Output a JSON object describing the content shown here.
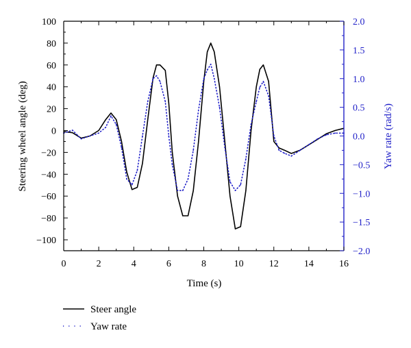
{
  "chart_data": {
    "type": "line",
    "xlabel": "Time (s)",
    "ylabel_left": "Steering wheel angle (deg)",
    "ylabel_right": "Yaw rate (rad/s)",
    "xlim": [
      0,
      16
    ],
    "ylim_left": [
      -110,
      100
    ],
    "ylim_right": [
      -2.0,
      2.0
    ],
    "x_ticks": [
      "0",
      "2",
      "4",
      "6",
      "8",
      "10",
      "12",
      "14",
      "16"
    ],
    "y_left_ticks": [
      "100",
      "80",
      "60",
      "40",
      "20",
      "0",
      "−20",
      "−40",
      "−60",
      "−80",
      "−100"
    ],
    "y_right_ticks": [
      "2.0",
      "1.5",
      "1.0",
      "0.5",
      "0.0",
      "−0.5",
      "−1.0",
      "−1.5",
      "−2.0"
    ],
    "grid": false,
    "legend_position": "below",
    "colors": {
      "steer": "#000000",
      "yaw": "#1f1fc8",
      "right_axis": "#1f1fc8"
    },
    "series": [
      {
        "name": "Steer angle",
        "axis": "left",
        "style": "solid",
        "x": [
          0,
          0.5,
          1.0,
          1.5,
          2.0,
          2.4,
          2.7,
          3.0,
          3.3,
          3.6,
          3.9,
          4.2,
          4.5,
          4.8,
          5.1,
          5.3,
          5.5,
          5.8,
          6.0,
          6.2,
          6.5,
          6.8,
          7.1,
          7.4,
          7.7,
          8.0,
          8.2,
          8.4,
          8.6,
          8.9,
          9.2,
          9.5,
          9.8,
          10.1,
          10.4,
          10.7,
          11.0,
          11.2,
          11.4,
          11.7,
          12.0,
          12.3,
          12.6,
          13.0,
          13.5,
          14.0,
          14.5,
          15.0,
          15.5,
          16.0
        ],
        "y": [
          -1,
          -2,
          -7,
          -5,
          0,
          10,
          16,
          10,
          -10,
          -38,
          -54,
          -52,
          -30,
          10,
          48,
          60,
          60,
          55,
          25,
          -20,
          -60,
          -78,
          -78,
          -55,
          -10,
          45,
          72,
          80,
          72,
          40,
          -10,
          -60,
          -90,
          -88,
          -55,
          0,
          40,
          56,
          60,
          45,
          -10,
          -16,
          -18,
          -21,
          -18,
          -13,
          -8,
          -3,
          0,
          2
        ]
      },
      {
        "name": "Yaw rate",
        "axis": "right",
        "style": "dotted",
        "x": [
          0,
          0.5,
          1.0,
          1.5,
          2.0,
          2.4,
          2.7,
          3.0,
          3.3,
          3.6,
          3.9,
          4.2,
          4.5,
          4.8,
          5.1,
          5.3,
          5.5,
          5.8,
          6.0,
          6.2,
          6.5,
          6.8,
          7.1,
          7.4,
          7.7,
          8.0,
          8.2,
          8.4,
          8.6,
          8.9,
          9.2,
          9.5,
          9.8,
          10.1,
          10.4,
          10.7,
          11.0,
          11.2,
          11.4,
          11.7,
          12.0,
          12.3,
          12.6,
          13.0,
          13.5,
          14.0,
          14.5,
          15.0,
          15.5,
          16.0
        ],
        "y": [
          0.05,
          0.1,
          -0.05,
          0.0,
          0.05,
          0.15,
          0.35,
          0.2,
          -0.2,
          -0.75,
          -0.85,
          -0.6,
          0.0,
          0.6,
          1.0,
          1.05,
          0.95,
          0.6,
          0.0,
          -0.5,
          -0.95,
          -0.95,
          -0.75,
          -0.25,
          0.45,
          1.0,
          1.15,
          1.25,
          1.0,
          0.5,
          -0.2,
          -0.8,
          -0.95,
          -0.85,
          -0.4,
          0.2,
          0.6,
          0.85,
          0.95,
          0.7,
          0.0,
          -0.25,
          -0.3,
          -0.35,
          -0.25,
          -0.15,
          -0.05,
          0.02,
          0.05,
          0.05
        ]
      }
    ]
  }
}
